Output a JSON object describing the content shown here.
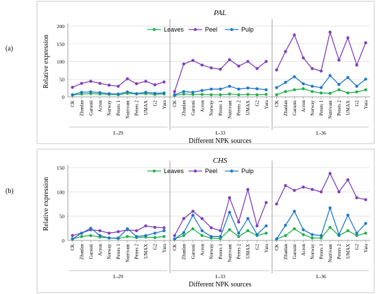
{
  "colors": {
    "Leaves": "#22b14c",
    "Peel": "#7f3fb8",
    "Pulp": "#1f78c8",
    "frame": "#c9c9c9",
    "grid": "#dddddd"
  },
  "chart_data": [
    {
      "type": "line",
      "panel_label": "(a)",
      "title": "PAL",
      "xlabel": "Different NPK sources",
      "ylabel": "Relative expression",
      "ylim": [
        0,
        200
      ],
      "yticks": [
        0,
        50,
        100,
        150,
        200
      ],
      "grid": true,
      "legend_position": "top-center",
      "groups": [
        "L-29",
        "L-33",
        "L-36"
      ],
      "categories": [
        "CK",
        "Zhanlan",
        "Garsoni",
        "Acron",
        "Norway",
        "Peters 1",
        "Nutrivant",
        "Peters 2",
        "UMAX",
        "G2",
        "Yara"
      ],
      "series": [
        {
          "name": "Leaves",
          "values": [
            [
              5,
              8,
              9,
              8,
              7,
              6,
              10,
              8,
              9,
              7,
              8
            ],
            [
              4,
              8,
              7,
              7,
              6,
              6,
              8,
              6,
              7,
              6,
              7
            ],
            [
              6,
              15,
              20,
              23,
              15,
              11,
              10,
              20,
              11,
              14,
              20
            ]
          ]
        },
        {
          "name": "Peel",
          "values": [
            [
              27,
              38,
              44,
              38,
              33,
              30,
              51,
              37,
              44,
              34,
              42
            ],
            [
              15,
              93,
              103,
              90,
              82,
              78,
              105,
              87,
              100,
              80,
              100
            ],
            [
              76,
              128,
              175,
              110,
              80,
              73,
              183,
              104,
              167,
              90,
              153
            ]
          ]
        },
        {
          "name": "Pulp",
          "values": [
            [
              6,
              13,
              14,
              12,
              9,
              8,
              14,
              9,
              13,
              10,
              11
            ],
            [
              6,
              15,
              13,
              18,
              22,
              22,
              30,
              22,
              25,
              23,
              20
            ],
            [
              26,
              41,
              57,
              37,
              30,
              26,
              60,
              35,
              55,
              30,
              50
            ]
          ]
        }
      ]
    },
    {
      "type": "line",
      "panel_label": "(b)",
      "title": "CHS",
      "xlabel": "Different NPK sources",
      "ylabel": "Relative expression",
      "ylim": [
        0,
        150
      ],
      "yticks": [
        0,
        50,
        100,
        150
      ],
      "grid": true,
      "legend_position": "top-center",
      "groups": [
        "L-29",
        "L-33",
        "L-36"
      ],
      "categories": [
        "CK",
        "Zhanlan",
        "Garsoni",
        "Acron",
        "Norway",
        "Peters 1",
        "Nutrivant",
        "Peters 2",
        "UMAX",
        "G2",
        "Yara"
      ],
      "series": [
        {
          "name": "Leaves",
          "values": [
            [
              3,
              8,
              10,
              7,
              5,
              4,
              8,
              6,
              7,
              6,
              8
            ],
            [
              3,
              10,
              24,
              10,
              5,
              4,
              22,
              8,
              20,
              10,
              15
            ],
            [
              3,
              10,
              24,
              12,
              5,
              5,
              27,
              10,
              20,
              10,
              15
            ]
          ]
        },
        {
          "name": "Peel",
          "values": [
            [
              10,
              15,
              22,
              20,
              15,
              18,
              22,
              20,
              30,
              27,
              26
            ],
            [
              10,
              45,
              60,
              45,
              26,
              20,
              88,
              38,
              105,
              30,
              78
            ],
            [
              75,
              113,
              103,
              110,
              105,
              100,
              138,
              100,
              125,
              88,
              84
            ]
          ]
        },
        {
          "name": "Pulp",
          "values": [
            [
              3,
              15,
              25,
              10,
              5,
              5,
              24,
              8,
              10,
              15,
              20
            ],
            [
              3,
              16,
              52,
              20,
              8,
              8,
              58,
              15,
              45,
              12,
              30
            ],
            [
              3,
              31,
              60,
              22,
              12,
              10,
              67,
              12,
              52,
              15,
              35
            ]
          ]
        }
      ]
    }
  ]
}
